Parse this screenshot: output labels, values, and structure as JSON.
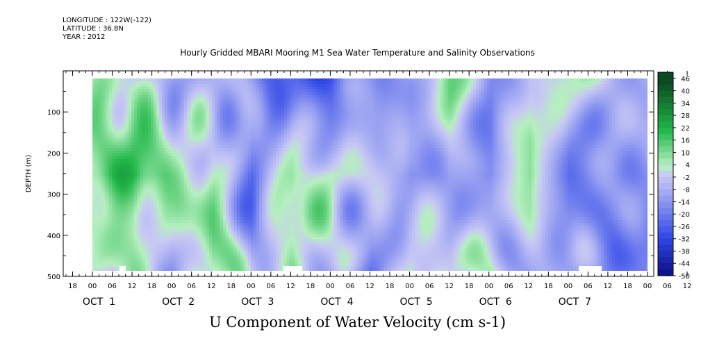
{
  "header": {
    "longitude": "LONGITUDE : 122W(-122)",
    "latitude": "LATITUDE : 36.8N",
    "year": "YEAR : 2012"
  },
  "chart_data": {
    "type": "heatmap",
    "title": "Hourly Gridded MBARI Mooring M1 Sea Water Temperature and Salinity Observations",
    "xlabel": "U Component of Water Velocity (cm s-1)",
    "ylabel": "DEPTH (m)",
    "ylim": [
      500,
      0
    ],
    "y_ticks": [
      100,
      200,
      300,
      400,
      500
    ],
    "y_tick_labels": [
      "100",
      "200",
      "300",
      "400",
      "500"
    ],
    "x_hour_labels": [
      "18",
      "00",
      "06",
      "12",
      "18",
      "00",
      "06",
      "12",
      "18",
      "00",
      "06",
      "12",
      "18",
      "00",
      "06",
      "12",
      "18",
      "00",
      "06",
      "12",
      "18",
      "00",
      "06",
      "12",
      "18",
      "00",
      "06",
      "12",
      "18",
      "00",
      "06",
      "12",
      "18",
      "00"
    ],
    "x_day_labels": [
      "OCT  1",
      "OCT  2",
      "OCT  3",
      "OCT  4",
      "OCT  5",
      "OCT  6",
      "OCT  7"
    ],
    "data_x_range_hours": [
      0,
      168
    ],
    "data_depth_range_m": [
      20,
      480
    ],
    "colorbar_levels": [
      "46",
      "40",
      "34",
      "28",
      "22",
      "16",
      "10",
      "4",
      "-2",
      "-8",
      "-14",
      "-20",
      "-26",
      "-32",
      "-38",
      "-44",
      "-50"
    ],
    "colormap": {
      "positive_dark": "#0a4a1f",
      "positive_mid": "#22b84a",
      "positive_light": "#b6f0c0",
      "neutral": "#c8c8f5",
      "negative_light": "#9aa2f2",
      "negative_mid": "#3048e8",
      "negative_dark": "#0a0a7a"
    },
    "field_description_columns": [
      {
        "day": 1,
        "hour": 0,
        "top": 4,
        "mid": 14,
        "bottom": 0
      },
      {
        "day": 1,
        "hour": 12,
        "top": 2,
        "mid": 22,
        "bottom": 4
      },
      {
        "day": 2,
        "hour": 0,
        "top": -4,
        "mid": 6,
        "bottom": -6
      },
      {
        "day": 2,
        "hour": 12,
        "top": -8,
        "mid": 8,
        "bottom": 10
      },
      {
        "day": 3,
        "hour": 0,
        "top": -14,
        "mid": -20,
        "bottom": -6
      },
      {
        "day": 3,
        "hour": 12,
        "top": -20,
        "mid": 6,
        "bottom": 12
      },
      {
        "day": 4,
        "hour": 0,
        "top": -30,
        "mid": 8,
        "bottom": -10
      },
      {
        "day": 4,
        "hour": 12,
        "top": -10,
        "mid": -2,
        "bottom": -16
      },
      {
        "day": 5,
        "hour": 0,
        "top": -8,
        "mid": -16,
        "bottom": 10
      },
      {
        "day": 5,
        "hour": 12,
        "top": 8,
        "mid": -4,
        "bottom": -8
      },
      {
        "day": 6,
        "hour": 0,
        "top": -14,
        "mid": -18,
        "bottom": 6
      },
      {
        "day": 6,
        "hour": 12,
        "top": 4,
        "mid": 10,
        "bottom": -6
      },
      {
        "day": 7,
        "hour": 0,
        "top": -2,
        "mid": -16,
        "bottom": -14
      }
    ]
  }
}
